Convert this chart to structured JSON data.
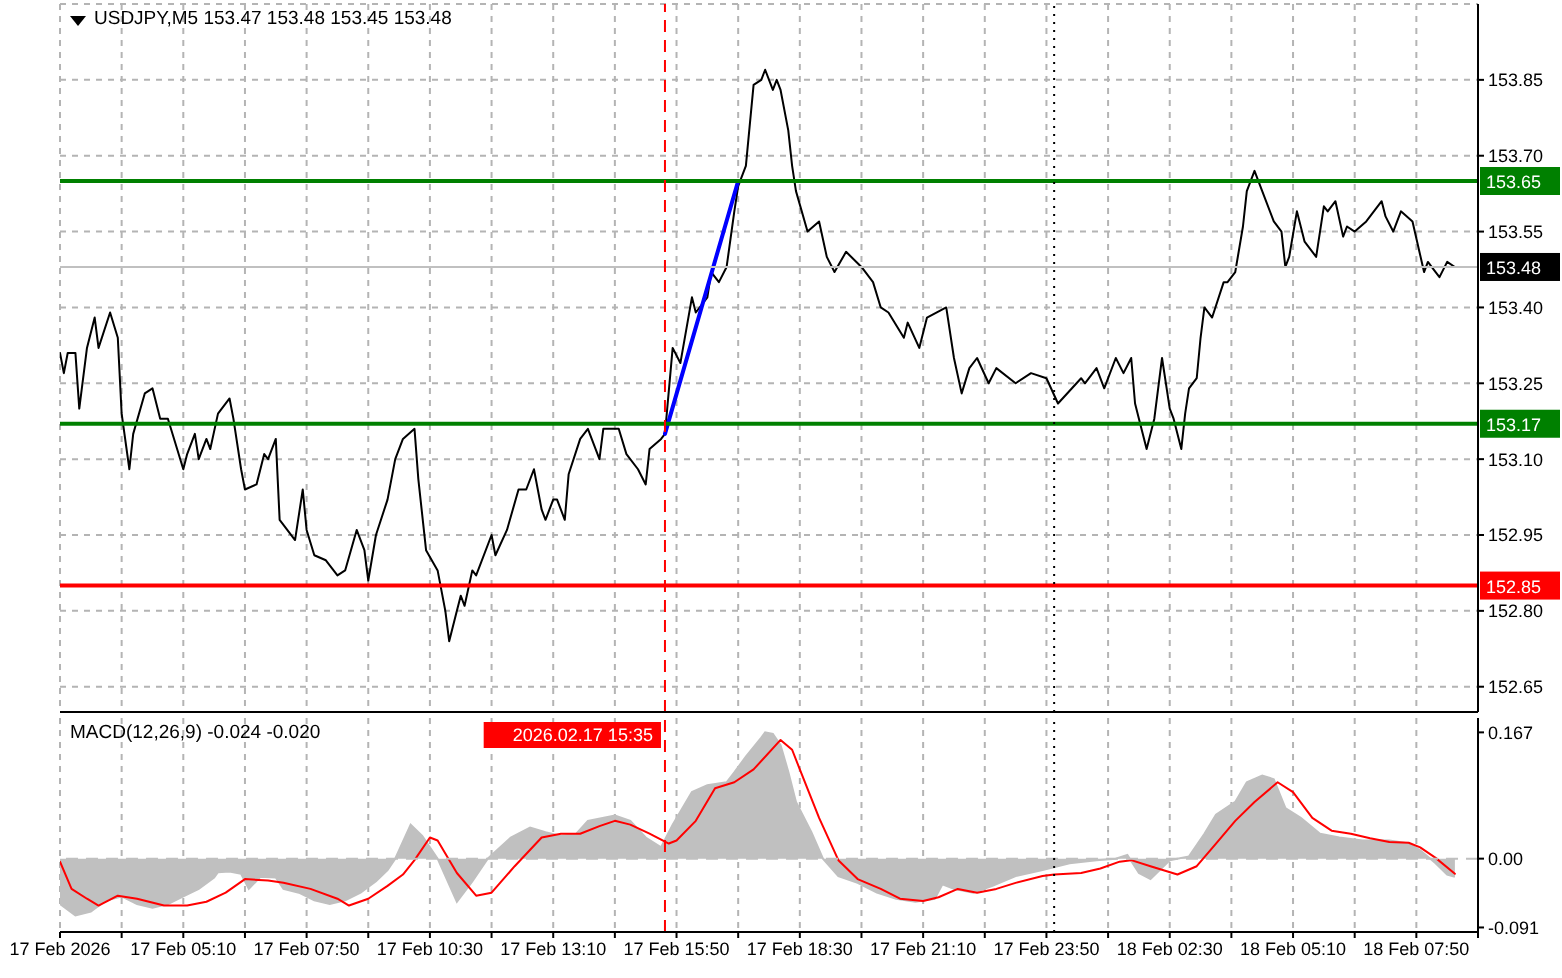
{
  "chart_data": [
    {
      "type": "line",
      "title": "USDJPY,M5 153.47 153.48 153.45 153.48",
      "tick_labels": "y",
      "grid": true,
      "xlim": [
        "2026-02-17T02:30",
        "2026-02-18T09:10"
      ],
      "xticks": [
        {
          "value": "2026-02-17T02:30",
          "label": null
        },
        {
          "value": "2026-02-17T03:50",
          "label": null
        },
        {
          "value": "2026-02-17T05:10",
          "label": null
        },
        {
          "value": "2026-02-17T06:30",
          "label": null
        },
        {
          "value": "2026-02-17T07:50",
          "label": null
        },
        {
          "value": "2026-02-17T09:10",
          "label": null
        },
        {
          "value": "2026-02-17T10:30",
          "label": null
        },
        {
          "value": "2026-02-17T11:50",
          "label": null
        },
        {
          "value": "2026-02-17T13:10",
          "label": null
        },
        {
          "value": "2026-02-17T14:30",
          "label": null
        },
        {
          "value": "2026-02-17T15:50",
          "label": null
        },
        {
          "value": "2026-02-17T17:10",
          "label": null
        },
        {
          "value": "2026-02-17T18:30",
          "label": null
        },
        {
          "value": "2026-02-17T19:50",
          "label": null
        },
        {
          "value": "2026-02-17T21:10",
          "label": null
        },
        {
          "value": "2026-02-17T22:30",
          "label": null
        },
        {
          "value": "2026-02-17T23:50",
          "label": null
        },
        {
          "value": "2026-02-18T01:10",
          "label": null
        },
        {
          "value": "2026-02-18T02:30",
          "label": null
        },
        {
          "value": "2026-02-18T03:50",
          "label": null
        },
        {
          "value": "2026-02-18T05:10",
          "label": null
        },
        {
          "value": "2026-02-18T06:30",
          "label": null
        },
        {
          "value": "2026-02-18T07:50",
          "label": null
        },
        {
          "value": "2026-02-18T09:10",
          "label": null
        }
      ],
      "ylim": [
        152.6,
        154.0
      ],
      "yticks": [
        152.65,
        {
          "value": 152.8,
          "label": "152.80"
        },
        152.95,
        {
          "value": 153.1,
          "label": "153.10"
        },
        153.25,
        {
          "value": 153.4,
          "label": "153.40"
        },
        153.55,
        {
          "value": 153.7,
          "label": "153.70"
        },
        153.85
      ],
      "series": [
        {
          "color": "#000000",
          "x": [
            "2026-02-17T02:30",
            "2026-02-17T02:35",
            "2026-02-17T02:40",
            "2026-02-17T02:50",
            "2026-02-17T02:55",
            "2026-02-17T03:05",
            "2026-02-17T03:15",
            "2026-02-17T03:20",
            "2026-02-17T03:35",
            "2026-02-17T03:45",
            "2026-02-17T03:50",
            "2026-02-17T04:00",
            "2026-02-17T04:05",
            "2026-02-17T04:20",
            "2026-02-17T04:30",
            "2026-02-17T04:40",
            "2026-02-17T04:50",
            "2026-02-17T05:10",
            "2026-02-17T05:15",
            "2026-02-17T05:25",
            "2026-02-17T05:30",
            "2026-02-17T05:40",
            "2026-02-17T05:45",
            "2026-02-17T05:55",
            "2026-02-17T06:10",
            "2026-02-17T06:15",
            "2026-02-17T06:25",
            "2026-02-17T06:30",
            "2026-02-17T06:45",
            "2026-02-17T06:55",
            "2026-02-17T07:00",
            "2026-02-17T07:10",
            "2026-02-17T07:15",
            "2026-02-17T07:35",
            "2026-02-17T07:45",
            "2026-02-17T07:50",
            "2026-02-17T08:00",
            "2026-02-17T08:15",
            "2026-02-17T08:30",
            "2026-02-17T08:40",
            "2026-02-17T08:55",
            "2026-02-17T09:05",
            "2026-02-17T09:10",
            "2026-02-17T09:20",
            "2026-02-17T09:35",
            "2026-02-17T09:45",
            "2026-02-17T09:55",
            "2026-02-17T10:10",
            "2026-02-17T10:15",
            "2026-02-17T10:25",
            "2026-02-17T10:40",
            "2026-02-17T10:50",
            "2026-02-17T10:55",
            "2026-02-17T11:05",
            "2026-02-17T11:10",
            "2026-02-17T11:15",
            "2026-02-17T11:25",
            "2026-02-17T11:30",
            "2026-02-17T11:50",
            "2026-02-17T11:55",
            "2026-02-17T12:10",
            "2026-02-17T12:25",
            "2026-02-17T12:35",
            "2026-02-17T12:45",
            "2026-02-17T12:55",
            "2026-02-17T13:00",
            "2026-02-17T13:10",
            "2026-02-17T13:15",
            "2026-02-17T13:25",
            "2026-02-17T13:30",
            "2026-02-17T13:45",
            "2026-02-17T13:55",
            "2026-02-17T14:10",
            "2026-02-17T14:15",
            "2026-02-17T14:35",
            "2026-02-17T14:45",
            "2026-02-17T15:00",
            "2026-02-17T15:10",
            "2026-02-17T15:15",
            "2026-02-17T15:30",
            "2026-02-17T15:35",
            "2026-02-17T15:45",
            "2026-02-17T15:55",
            "2026-02-17T16:10",
            "2026-02-17T16:15",
            "2026-02-17T16:30",
            "2026-02-17T16:35",
            "2026-02-17T16:45",
            "2026-02-17T16:55",
            "2026-02-17T17:05",
            "2026-02-17T17:10",
            "2026-02-17T17:20",
            "2026-02-17T17:30",
            "2026-02-17T17:40",
            "2026-02-17T17:45",
            "2026-02-17T17:55",
            "2026-02-17T18:00",
            "2026-02-17T18:05",
            "2026-02-17T18:15",
            "2026-02-17T18:20",
            "2026-02-17T18:25",
            "2026-02-17T18:40",
            "2026-02-17T18:55",
            "2026-02-17T19:05",
            "2026-02-17T19:15",
            "2026-02-17T19:30",
            "2026-02-17T19:50",
            "2026-02-17T20:05",
            "2026-02-17T20:15",
            "2026-02-17T20:25",
            "2026-02-17T20:45",
            "2026-02-17T20:50",
            "2026-02-17T21:05",
            "2026-02-17T21:15",
            "2026-02-17T21:40",
            "2026-02-17T21:50",
            "2026-02-17T22:00",
            "2026-02-17T22:10",
            "2026-02-17T22:20",
            "2026-02-17T22:35",
            "2026-02-17T22:45",
            "2026-02-17T23:10",
            "2026-02-17T23:30",
            "2026-02-17T23:50",
            "2026-02-18T00:05",
            "2026-02-18T00:35",
            "2026-02-18T00:40",
            "2026-02-18T00:55",
            "2026-02-18T01:05",
            "2026-02-18T01:20",
            "2026-02-18T01:30",
            "2026-02-18T01:40",
            "2026-02-18T01:45",
            "2026-02-18T01:50",
            "2026-02-18T02:00",
            "2026-02-18T02:10",
            "2026-02-18T02:20",
            "2026-02-18T02:30",
            "2026-02-18T02:35",
            "2026-02-18T02:45",
            "2026-02-18T02:50",
            "2026-02-18T02:55",
            "2026-02-18T03:05",
            "2026-02-18T03:10",
            "2026-02-18T03:15",
            "2026-02-18T03:25",
            "2026-02-18T03:40",
            "2026-02-18T03:45",
            "2026-02-18T03:55",
            "2026-02-18T04:05",
            "2026-02-18T04:10",
            "2026-02-18T04:20",
            "2026-02-18T04:30",
            "2026-02-18T04:45",
            "2026-02-18T04:55",
            "2026-02-18T05:00",
            "2026-02-18T05:05",
            "2026-02-18T05:15",
            "2026-02-18T05:25",
            "2026-02-18T05:40",
            "2026-02-18T05:50",
            "2026-02-18T05:55",
            "2026-02-18T06:05",
            "2026-02-18T06:15",
            "2026-02-18T06:20",
            "2026-02-18T06:30",
            "2026-02-18T06:45",
            "2026-02-18T07:05",
            "2026-02-18T07:10",
            "2026-02-18T07:20",
            "2026-02-18T07:30",
            "2026-02-18T07:45",
            "2026-02-18T08:00",
            "2026-02-18T08:05",
            "2026-02-18T08:15",
            "2026-02-18T08:20",
            "2026-02-18T08:30",
            "2026-02-18T08:40"
          ],
          "values": [
            153.31,
            153.27,
            153.31,
            153.31,
            153.2,
            153.32,
            153.38,
            153.32,
            153.39,
            153.34,
            153.19,
            153.08,
            153.15,
            153.23,
            153.24,
            153.18,
            153.18,
            153.08,
            153.11,
            153.15,
            153.1,
            153.14,
            153.12,
            153.19,
            153.22,
            153.18,
            153.08,
            153.04,
            153.05,
            153.11,
            153.1,
            153.14,
            152.98,
            152.94,
            153.04,
            152.96,
            152.91,
            152.9,
            152.87,
            152.88,
            152.96,
            152.92,
            152.86,
            152.95,
            153.02,
            153.1,
            153.14,
            153.16,
            153.06,
            152.92,
            152.88,
            152.8,
            152.74,
            152.8,
            152.83,
            152.81,
            152.88,
            152.87,
            152.95,
            152.91,
            152.96,
            153.04,
            153.04,
            153.08,
            153.0,
            152.98,
            153.02,
            153.02,
            152.98,
            153.07,
            153.14,
            153.16,
            153.1,
            153.16,
            153.16,
            153.11,
            153.08,
            153.05,
            153.12,
            153.14,
            153.15,
            153.32,
            153.29,
            153.42,
            153.39,
            153.42,
            153.47,
            153.45,
            153.48,
            153.59,
            153.64,
            153.68,
            153.84,
            153.85,
            153.87,
            153.83,
            153.85,
            153.83,
            153.75,
            153.68,
            153.63,
            153.55,
            153.57,
            153.5,
            153.47,
            153.51,
            153.48,
            153.45,
            153.4,
            153.39,
            153.34,
            153.37,
            153.32,
            153.38,
            153.4,
            153.3,
            153.23,
            153.28,
            153.3,
            153.25,
            153.28,
            153.25,
            153.27,
            153.26,
            153.21,
            153.26,
            153.25,
            153.28,
            153.24,
            153.3,
            153.27,
            153.3,
            153.21,
            153.18,
            153.12,
            153.18,
            153.3,
            153.2,
            153.18,
            153.12,
            153.19,
            153.24,
            153.26,
            153.34,
            153.4,
            153.38,
            153.45,
            153.45,
            153.47,
            153.56,
            153.63,
            153.67,
            153.63,
            153.57,
            153.55,
            153.48,
            153.5,
            153.59,
            153.53,
            153.5,
            153.6,
            153.59,
            153.61,
            153.54,
            153.56,
            153.55,
            153.57,
            153.61,
            153.58,
            153.55,
            153.59,
            153.57,
            153.47,
            153.49,
            153.47,
            153.46,
            153.49,
            153.48
          ]
        },
        {
          "type": "line",
          "color": "#0000ff",
          "x": [
            "2026-02-17T15:35",
            "2026-02-17T17:10"
          ],
          "values": [
            153.15,
            153.65
          ]
        }
      ],
      "ref_lines": [
        {
          "axis": "y",
          "value": 153.65,
          "label": "153.65",
          "color": "#008000"
        },
        {
          "axis": "y",
          "value": 153.17,
          "label": "153.17",
          "color": "#008000"
        },
        {
          "axis": "y",
          "value": 152.85,
          "label": "152.85",
          "color": "#ff0000"
        },
        {
          "axis": "y",
          "value": 153.48,
          "label": "153.48",
          "color": "#c0c0c0"
        },
        {
          "axis": "x",
          "value": "2026-02-17T15:35",
          "color": "#ff0000",
          "line_style": "dashed"
        },
        {
          "axis": "x",
          "value": "2026-02-18T00:00",
          "color": "#000000",
          "line_style": "dotted"
        }
      ]
    },
    {
      "type": "area",
      "title": "MACD(12,26,9) -0.024 -0.020",
      "grid": "x",
      "xlim": [
        "2026-02-17T02:30",
        "2026-02-18T09:10"
      ],
      "xticks": [
        {
          "value": "2026-02-17T02:30",
          "label": "17 Feb 2026"
        },
        {
          "value": "2026-02-17T03:50",
          "label": null
        },
        {
          "value": "2026-02-17T05:10",
          "label": "17 Feb 05:10"
        },
        {
          "value": "2026-02-17T06:30",
          "label": null
        },
        {
          "value": "2026-02-17T07:50",
          "label": "17 Feb 07:50"
        },
        {
          "value": "2026-02-17T09:10",
          "label": null
        },
        {
          "value": "2026-02-17T10:30",
          "label": "17 Feb 10:30"
        },
        {
          "value": "2026-02-17T11:50",
          "label": null
        },
        {
          "value": "2026-02-17T13:10",
          "label": "17 Feb 13:10"
        },
        {
          "value": "2026-02-17T14:30",
          "label": null
        },
        {
          "value": "2026-02-17T15:50",
          "label": "17 Feb 15:50"
        },
        {
          "value": "2026-02-17T17:10",
          "label": null
        },
        {
          "value": "2026-02-17T18:30",
          "label": "17 Feb 18:30"
        },
        {
          "value": "2026-02-17T19:50",
          "label": null
        },
        {
          "value": "2026-02-17T21:10",
          "label": "17 Feb 21:10"
        },
        {
          "value": "2026-02-17T22:30",
          "label": null
        },
        {
          "value": "2026-02-17T23:50",
          "label": "17 Feb 23:50"
        },
        {
          "value": "2026-02-18T01:10",
          "label": null
        },
        {
          "value": "2026-02-18T02:30",
          "label": "18 Feb 02:30"
        },
        {
          "value": "2026-02-18T03:50",
          "label": null
        },
        {
          "value": "2026-02-18T05:10",
          "label": "18 Feb 05:10"
        },
        {
          "value": "2026-02-18T06:30",
          "label": null
        },
        {
          "value": "2026-02-18T07:50",
          "label": "18 Feb 07:50"
        },
        {
          "value": "2026-02-18T09:10",
          "label": null
        }
      ],
      "ylim": [
        -0.097,
        0.186
      ],
      "yticks": [
        -0.091,
        {
          "value": 0,
          "label": "0.00"
        },
        0.167
      ],
      "series": [
        {
          "color": "#c0c0c0",
          "x": [
            "2026-02-17T02:30",
            "2026-02-17T02:50",
            "2026-02-17T03:10",
            "2026-02-17T03:30",
            "2026-02-17T03:50",
            "2026-02-17T04:10",
            "2026-02-17T04:30",
            "2026-02-17T04:50",
            "2026-02-17T05:10",
            "2026-02-17T05:30",
            "2026-02-17T05:50",
            "2026-02-17T05:55",
            "2026-02-17T06:10",
            "2026-02-17T06:25",
            "2026-02-17T06:35",
            "2026-02-17T06:50",
            "2026-02-17T07:10",
            "2026-02-17T07:20",
            "2026-02-17T07:40",
            "2026-02-17T08:00",
            "2026-02-17T08:20",
            "2026-02-17T08:40",
            "2026-02-17T09:00",
            "2026-02-17T09:20",
            "2026-02-17T09:35",
            "2026-02-17T09:45",
            "2026-02-17T10:05",
            "2026-02-17T10:20",
            "2026-02-17T10:40",
            "2026-02-17T11:05",
            "2026-02-17T11:25",
            "2026-02-17T11:45",
            "2026-02-17T12:15",
            "2026-02-17T12:40",
            "2026-02-17T13:00",
            "2026-02-17T13:20",
            "2026-02-17T13:40",
            "2026-02-17T13:55",
            "2026-02-17T14:30",
            "2026-02-17T14:50",
            "2026-02-17T15:10",
            "2026-02-17T15:30",
            "2026-02-17T15:45",
            "2026-02-17T16:10",
            "2026-02-17T16:30",
            "2026-02-17T16:55",
            "2026-02-17T17:05",
            "2026-02-17T17:20",
            "2026-02-17T17:40",
            "2026-02-17T17:45",
            "2026-02-17T17:55",
            "2026-02-17T18:05",
            "2026-02-17T18:15",
            "2026-02-17T18:25",
            "2026-02-17T18:45",
            "2026-02-17T19:00",
            "2026-02-17T19:20",
            "2026-02-17T19:45",
            "2026-02-17T20:10",
            "2026-02-17T20:35",
            "2026-02-17T21:00",
            "2026-02-17T21:25",
            "2026-02-17T21:35",
            "2026-02-17T21:50",
            "2026-02-17T22:15",
            "2026-02-17T22:40",
            "2026-02-17T23:10",
            "2026-02-17T23:45",
            "2026-02-18T00:20",
            "2026-02-18T00:55",
            "2026-02-18T01:20",
            "2026-02-18T01:35",
            "2026-02-18T01:50",
            "2026-02-18T02:05",
            "2026-02-18T02:15",
            "2026-02-18T02:30",
            "2026-02-18T02:55",
            "2026-02-18T03:15",
            "2026-02-18T03:30",
            "2026-02-18T03:55",
            "2026-02-18T04:10",
            "2026-02-18T04:30",
            "2026-02-18T04:45",
            "2026-02-18T05:00",
            "2026-02-18T05:20",
            "2026-02-18T05:45",
            "2026-02-18T06:10",
            "2026-02-18T06:40",
            "2026-02-18T07:15",
            "2026-02-18T07:40",
            "2026-02-18T07:55",
            "2026-02-18T08:15",
            "2026-02-18T08:30",
            "2026-02-18T08:40"
          ],
          "values": [
            -0.06,
            -0.075,
            -0.07,
            -0.055,
            -0.05,
            -0.06,
            -0.065,
            -0.06,
            -0.05,
            -0.04,
            -0.025,
            -0.018,
            -0.017,
            -0.02,
            -0.04,
            -0.024,
            -0.025,
            -0.04,
            -0.045,
            -0.055,
            -0.06,
            -0.055,
            -0.045,
            -0.03,
            -0.015,
            0,
            0.045,
            0.03,
            0,
            -0.057,
            -0.03,
            0,
            0.028,
            0.041,
            0.035,
            0.03,
            0.033,
            0.05,
            0.057,
            0.05,
            0.028,
            0.015,
            0.045,
            0.088,
            0.097,
            0.101,
            0.114,
            0.135,
            0.16,
            0.167,
            0.165,
            0.15,
            0.115,
            0.075,
            0.035,
            0,
            -0.023,
            -0.032,
            -0.045,
            -0.053,
            -0.057,
            -0.053,
            -0.034,
            -0.04,
            -0.045,
            -0.036,
            -0.023,
            -0.015,
            -0.006,
            -0.002,
            0,
            0.005,
            -0.019,
            -0.027,
            -0.017,
            -0.002,
            0.003,
            0.033,
            0.058,
            0.075,
            0.101,
            0.11,
            0.105,
            0.067,
            0.054,
            0.033,
            0.028,
            0.024,
            0.024,
            0.02,
            0.011,
            -0.006,
            -0.021,
            -0.024
          ]
        },
        {
          "type": "line",
          "color": "#ff0000",
          "x": [
            "2026-02-17T02:30",
            "2026-02-17T02:45",
            "2026-02-17T03:05",
            "2026-02-17T03:20",
            "2026-02-17T03:45",
            "2026-02-17T04:10",
            "2026-02-17T04:45",
            "2026-02-17T05:15",
            "2026-02-17T05:40",
            "2026-02-17T06:05",
            "2026-02-17T06:30",
            "2026-02-17T07:00",
            "2026-02-17T07:20",
            "2026-02-17T07:55",
            "2026-02-17T08:30",
            "2026-02-17T08:45",
            "2026-02-17T09:10",
            "2026-02-17T09:35",
            "2026-02-17T09:55",
            "2026-02-17T10:10",
            "2026-02-17T10:30",
            "2026-02-17T10:40",
            "2026-02-17T11:05",
            "2026-02-17T11:30",
            "2026-02-17T11:50",
            "2026-02-17T12:20",
            "2026-02-17T12:55",
            "2026-02-17T13:20",
            "2026-02-17T13:45",
            "2026-02-17T14:10",
            "2026-02-17T14:30",
            "2026-02-17T14:50",
            "2026-02-17T15:15",
            "2026-02-17T15:40",
            "2026-02-17T15:50",
            "2026-02-17T16:15",
            "2026-02-17T16:40",
            "2026-02-17T17:05",
            "2026-02-17T17:30",
            "2026-02-17T18:05",
            "2026-02-17T18:20",
            "2026-02-17T18:30",
            "2026-02-17T18:55",
            "2026-02-17T19:20",
            "2026-02-17T19:45",
            "2026-02-17T20:15",
            "2026-02-17T20:40",
            "2026-02-17T21:10",
            "2026-02-17T21:30",
            "2026-02-17T21:55",
            "2026-02-17T22:20",
            "2026-02-17T22:45",
            "2026-02-17T23:10",
            "2026-02-17T23:45",
            "2026-02-18T00:00",
            "2026-02-18T00:35",
            "2026-02-18T01:00",
            "2026-02-18T01:25",
            "2026-02-18T01:40",
            "2026-02-18T02:05",
            "2026-02-18T02:40",
            "2026-02-18T03:05",
            "2026-02-18T03:30",
            "2026-02-18T03:55",
            "2026-02-18T04:20",
            "2026-02-18T04:50",
            "2026-02-18T05:10",
            "2026-02-18T05:35",
            "2026-02-18T06:00",
            "2026-02-18T06:25",
            "2026-02-18T06:50",
            "2026-02-18T07:15",
            "2026-02-18T07:40",
            "2026-02-18T07:55",
            "2026-02-18T08:15",
            "2026-02-18T08:40"
          ],
          "values": [
            -0.004,
            -0.04,
            -0.053,
            -0.062,
            -0.049,
            -0.053,
            -0.062,
            -0.062,
            -0.057,
            -0.045,
            -0.027,
            -0.029,
            -0.032,
            -0.04,
            -0.053,
            -0.062,
            -0.053,
            -0.036,
            -0.021,
            -0.002,
            0.028,
            0.024,
            -0.019,
            -0.049,
            -0.045,
            -0.01,
            0.028,
            0.033,
            0.033,
            0.043,
            0.05,
            0.045,
            0.033,
            0.02,
            0.024,
            0.05,
            0.093,
            0.101,
            0.118,
            0.157,
            0.144,
            0.118,
            0.054,
            -0.002,
            -0.027,
            -0.04,
            -0.053,
            -0.056,
            -0.051,
            -0.04,
            -0.045,
            -0.04,
            -0.032,
            -0.023,
            -0.021,
            -0.019,
            -0.013,
            -0.004,
            -0.002,
            -0.01,
            -0.021,
            -0.01,
            0.02,
            0.05,
            0.075,
            0.101,
            0.088,
            0.054,
            0.037,
            0.033,
            0.027,
            0.022,
            0.021,
            0.015,
            0.001,
            -0.02
          ]
        }
      ],
      "ref_lines": [
        {
          "axis": "y",
          "value": 0,
          "color": "#c0c0c0",
          "line_style": "dashed"
        },
        {
          "axis": "x",
          "value": "2026-02-17T15:35",
          "label": "2026.02.17 15:35",
          "color": "#ff0000",
          "line_style": "dashed"
        },
        {
          "axis": "x",
          "value": "2026-02-18T00:00",
          "color": "#000000",
          "line_style": "dotted"
        }
      ]
    }
  ]
}
